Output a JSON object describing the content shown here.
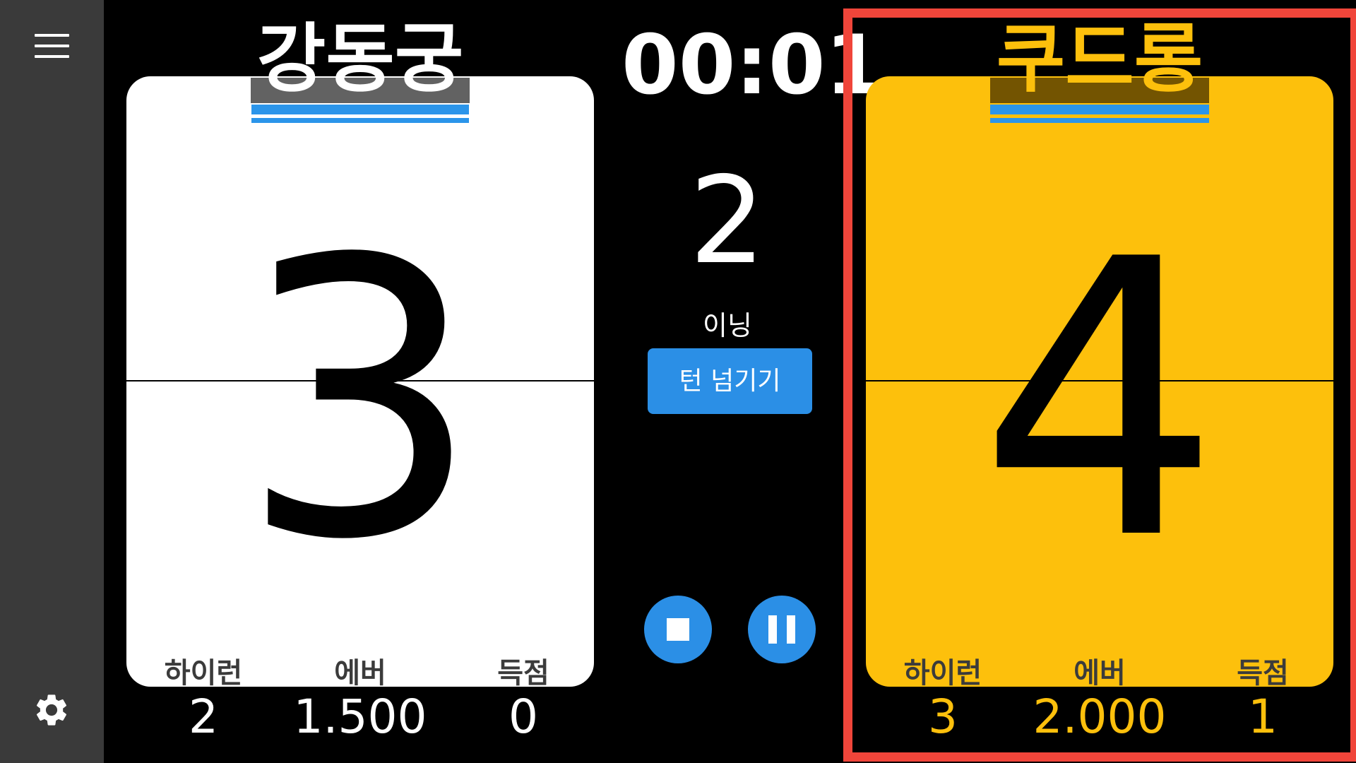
{
  "sidebar": {
    "menu_icon": "hamburger-icon",
    "settings_icon": "gear-icon"
  },
  "timer": "00:01",
  "inning": {
    "number": "2",
    "label": "이닝"
  },
  "turn_button": "턴 넘기기",
  "controls": {
    "stop_icon": "stop-icon",
    "pause_icon": "pause-icon"
  },
  "home": {
    "name": "강동궁",
    "score": "3",
    "card_color": "#ffffff",
    "stats": {
      "labels": [
        "하이런",
        "에버",
        "득점"
      ],
      "values": [
        "2",
        "1.500",
        "0"
      ]
    }
  },
  "away": {
    "name": "쿠드롱",
    "score": "4",
    "card_color": "#fdc00c",
    "text_color": "#fdc00c",
    "active": true,
    "stats": {
      "labels": [
        "하이런",
        "에버",
        "득점"
      ],
      "values": [
        "3",
        "2.000",
        "1"
      ]
    }
  },
  "colors": {
    "accent": "#2b8fe6",
    "highlight": "#f0453a",
    "name_bar": "#2b95ea"
  }
}
